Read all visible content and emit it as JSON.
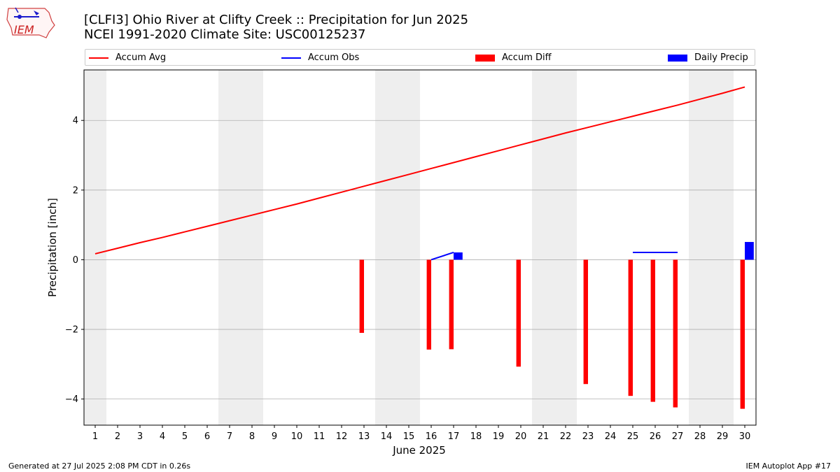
{
  "header": {
    "logo_text": "IEM",
    "title_line1": "[CLFI3] Ohio River at Clifty Creek :: Precipitation for Jun 2025",
    "title_line2": "NCEI 1991-2020 Climate Site: USC00125237"
  },
  "footer": {
    "generated": "Generated at 27 Jul 2025 2:08 PM CDT in 0.26s",
    "app": "IEM Autoplot App #17"
  },
  "colors": {
    "accum_avg": "#ff0000",
    "accum_obs": "#0000ff",
    "accum_diff": "#ff0000",
    "daily_precip": "#0000ff",
    "weekend_band": "#eeeeee",
    "grid": "#b0b0b0"
  },
  "chart_data": {
    "type": "bar",
    "xlabel": "June 2025",
    "ylabel": "Precipitation [inch]",
    "x": [
      1,
      2,
      3,
      4,
      5,
      6,
      7,
      8,
      9,
      10,
      11,
      12,
      13,
      14,
      15,
      16,
      17,
      18,
      19,
      20,
      21,
      22,
      23,
      24,
      25,
      26,
      27,
      28,
      29,
      30
    ],
    "xlim": [
      0.5,
      30.5
    ],
    "ylim": [
      -4.75,
      5.45
    ],
    "yticks": [
      -4,
      -2,
      0,
      2,
      4
    ],
    "grid": "horizontal",
    "legend_position": "top",
    "weekend_bands": [
      [
        0.5,
        1.5
      ],
      [
        6.5,
        8.5
      ],
      [
        13.5,
        15.5
      ],
      [
        20.5,
        22.5
      ],
      [
        27.5,
        29.5
      ]
    ],
    "series": [
      {
        "name": "Accum Avg",
        "kind": "line",
        "x": [
          1,
          2,
          3,
          4,
          5,
          6,
          7,
          8,
          9,
          10,
          11,
          12,
          13,
          14,
          15,
          16,
          17,
          18,
          19,
          20,
          21,
          22,
          23,
          24,
          25,
          26,
          27,
          28,
          29,
          30
        ],
        "values": [
          0.17,
          0.33,
          0.49,
          0.64,
          0.8,
          0.96,
          1.12,
          1.28,
          1.44,
          1.6,
          1.77,
          1.94,
          2.11,
          2.28,
          2.45,
          2.62,
          2.79,
          2.96,
          3.13,
          3.3,
          3.47,
          3.64,
          3.8,
          3.96,
          4.12,
          4.28,
          4.44,
          4.61,
          4.78,
          4.96
        ]
      },
      {
        "name": "Accum Obs",
        "kind": "line",
        "segments": [
          {
            "x": [
              16,
              17
            ],
            "values": [
              0.0,
              0.21
            ]
          },
          {
            "x": [
              25,
              26,
              27
            ],
            "values": [
              0.21,
              0.21,
              0.21
            ]
          }
        ]
      },
      {
        "name": "Accum Diff",
        "kind": "bar",
        "x": [
          13,
          16,
          17,
          20,
          23,
          25,
          26,
          27,
          30
        ],
        "values": [
          -2.1,
          -2.58,
          -2.57,
          -3.07,
          -3.57,
          -3.91,
          -4.08,
          -4.24,
          -4.28
        ]
      },
      {
        "name": "Daily Precip",
        "kind": "bar",
        "x": [
          17,
          30
        ],
        "values": [
          0.21,
          0.51
        ]
      }
    ]
  }
}
